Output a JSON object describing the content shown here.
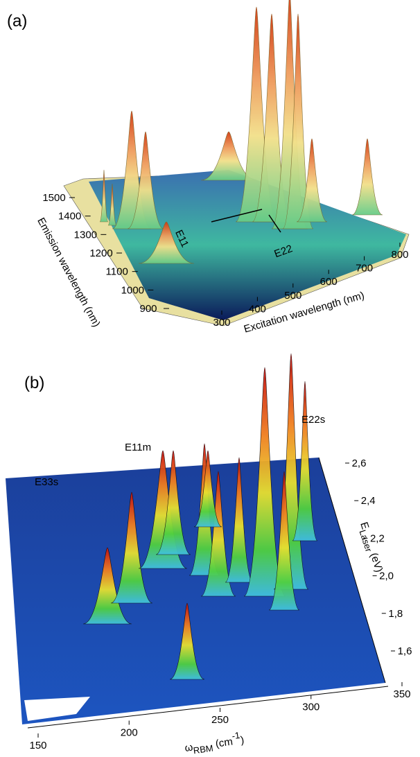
{
  "chart_data": [
    {
      "type": "surface3d",
      "panel_label": "(a)",
      "xlabel": "Excitation wavelength  (nm)",
      "ylabel": "Emission wavelength  (nm)",
      "xlim": [
        300,
        800
      ],
      "xticks": [
        300,
        400,
        500,
        600,
        700,
        800
      ],
      "ylim": [
        900,
        1500
      ],
      "yticks": [
        900,
        1000,
        1100,
        1200,
        1300,
        1400,
        1500
      ],
      "annotations": [
        "E11",
        "E22"
      ]
    },
    {
      "type": "surface3d",
      "panel_label": "(b)",
      "xlabel": {
        "symbol": "ω",
        "sub": "RBM",
        "unit": " (cm",
        "sup": "-1",
        "close": ")"
      },
      "ylabel": {
        "symbol": "E",
        "sub": "Laser",
        "unit": " (eV)"
      },
      "xlim": [
        150,
        350
      ],
      "xticks": [
        150,
        200,
        250,
        300,
        350
      ],
      "ylim": [
        1.6,
        2.6
      ],
      "yticks": [
        {
          "value": 1.6,
          "label": "1,6"
        },
        {
          "value": 1.8,
          "label": "1,8"
        },
        {
          "value": 2.0,
          "label": "2,0"
        },
        {
          "value": 2.2,
          "label": "2,2"
        },
        {
          "value": 2.4,
          "label": "2,4"
        },
        {
          "value": 2.6,
          "label": "2,6"
        }
      ],
      "annotations": [
        "E33s",
        "E11m",
        "E22s"
      ]
    }
  ]
}
